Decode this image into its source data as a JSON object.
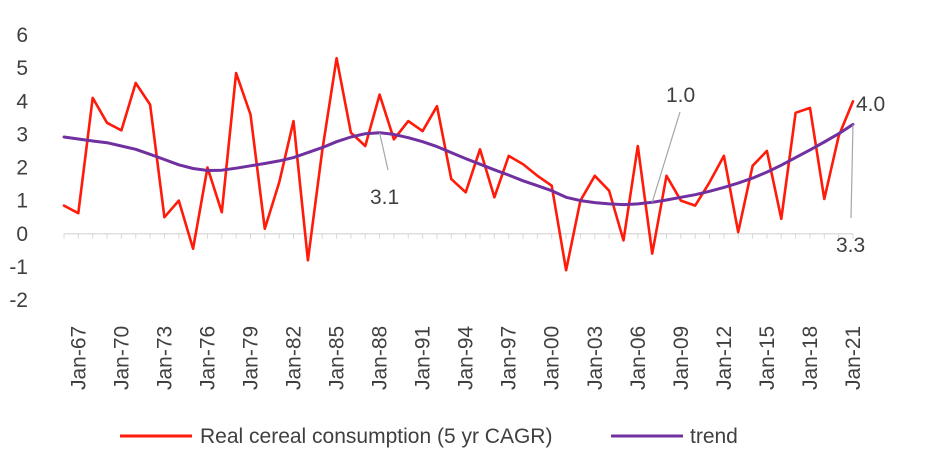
{
  "chart_data": {
    "type": "line",
    "title": "",
    "xlabel": "",
    "ylabel": "",
    "ylim": [
      -2,
      6
    ],
    "yticks": [
      -2,
      -1,
      0,
      1,
      2,
      3,
      4,
      5,
      6
    ],
    "xtick_labels": [
      "Jan-67",
      "Jan-70",
      "Jan-73",
      "Jan-76",
      "Jan-79",
      "Jan-82",
      "Jan-85",
      "Jan-88",
      "Jan-91",
      "Jan-94",
      "Jan-97",
      "Jan-00",
      "Jan-03",
      "Jan-06",
      "Jan-09",
      "Jan-12",
      "Jan-15",
      "Jan-18",
      "Jan-21"
    ],
    "x": [
      1966,
      1967,
      1968,
      1969,
      1970,
      1971,
      1972,
      1973,
      1974,
      1975,
      1976,
      1977,
      1978,
      1979,
      1980,
      1981,
      1982,
      1983,
      1984,
      1985,
      1986,
      1987,
      1988,
      1989,
      1990,
      1991,
      1992,
      1993,
      1994,
      1995,
      1996,
      1997,
      1998,
      1999,
      2000,
      2001,
      2002,
      2003,
      2004,
      2005,
      2006,
      2007,
      2008,
      2009,
      2010,
      2011,
      2012,
      2013,
      2014,
      2015,
      2016,
      2017,
      2018,
      2019,
      2020,
      2021
    ],
    "series": [
      {
        "name": "Real cereal consumption (5 yr CAGR)",
        "color": "#ff1a0a",
        "values": [
          0.85,
          0.62,
          4.1,
          3.35,
          3.12,
          4.55,
          3.9,
          0.5,
          1.0,
          -0.45,
          2.0,
          0.65,
          4.85,
          3.6,
          0.15,
          1.55,
          3.4,
          -0.8,
          2.5,
          5.3,
          3.05,
          2.65,
          4.2,
          2.85,
          3.4,
          3.1,
          3.85,
          1.65,
          1.25,
          2.55,
          1.1,
          2.35,
          2.1,
          1.75,
          1.45,
          -1.1,
          1.0,
          1.75,
          1.3,
          -0.2,
          2.65,
          -0.6,
          1.75,
          1.0,
          0.85,
          1.55,
          2.35,
          0.05,
          2.05,
          2.5,
          0.45,
          3.65,
          3.8,
          1.05,
          2.95,
          4.0
        ]
      },
      {
        "name": "trend",
        "color": "#7030a0",
        "values": [
          2.92,
          2.86,
          2.8,
          2.75,
          2.65,
          2.55,
          2.4,
          2.24,
          2.08,
          1.97,
          1.91,
          1.92,
          1.98,
          2.05,
          2.12,
          2.2,
          2.3,
          2.45,
          2.6,
          2.78,
          2.92,
          3.02,
          3.05,
          3.0,
          2.9,
          2.78,
          2.63,
          2.45,
          2.27,
          2.1,
          1.93,
          1.77,
          1.6,
          1.45,
          1.3,
          1.1,
          1.0,
          0.94,
          0.9,
          0.88,
          0.9,
          0.95,
          1.02,
          1.1,
          1.18,
          1.28,
          1.4,
          1.53,
          1.68,
          1.86,
          2.07,
          2.3,
          2.53,
          2.77,
          3.02,
          3.3
        ]
      }
    ],
    "annotations": [
      {
        "text": "3.1",
        "x": 1988,
        "y": 3.05
      },
      {
        "text": "1.0",
        "x": 2007,
        "y": 0.95
      },
      {
        "text": "4.0",
        "x": 2021,
        "y": 4.0
      },
      {
        "text": "3.3",
        "x": 2021,
        "y": 3.3
      }
    ],
    "legend_position": "bottom",
    "grid": false
  }
}
